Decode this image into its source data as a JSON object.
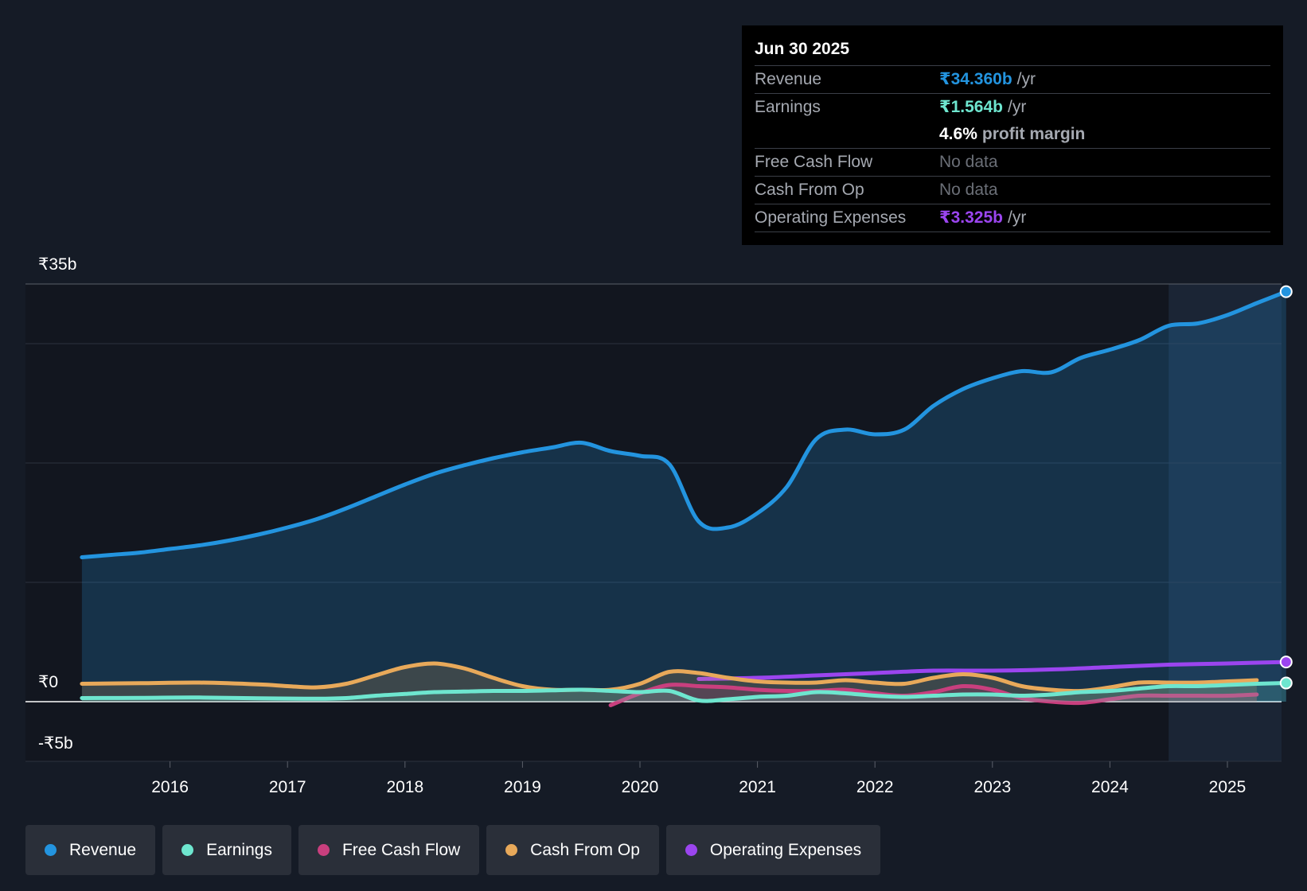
{
  "chart_data": {
    "type": "area",
    "x_domain": [
      2015.0,
      2025.5
    ],
    "ylim": [
      -5,
      35
    ],
    "y_tick_labels": [
      {
        "value": 35,
        "label": "₹35b"
      },
      {
        "value": 0,
        "label": "₹0"
      },
      {
        "value": -5,
        "label": "-₹5b"
      }
    ],
    "gridlines": [
      35,
      30,
      20,
      10,
      0,
      -5
    ],
    "x_ticks": [
      {
        "value": 2016,
        "label": "2016"
      },
      {
        "value": 2017,
        "label": "2017"
      },
      {
        "value": 2018,
        "label": "2018"
      },
      {
        "value": 2019,
        "label": "2019"
      },
      {
        "value": 2020,
        "label": "2020"
      },
      {
        "value": 2021,
        "label": "2021"
      },
      {
        "value": 2022,
        "label": "2022"
      },
      {
        "value": 2023,
        "label": "2023"
      },
      {
        "value": 2024,
        "label": "2024"
      },
      {
        "value": 2025,
        "label": "2025"
      }
    ],
    "forecast_region_start": 2024.5,
    "series": [
      {
        "name": "Revenue",
        "color": "#2394df",
        "fill": true,
        "endpoint": true,
        "width": 5,
        "points": [
          [
            2015.25,
            12.1
          ],
          [
            2015.5,
            12.3
          ],
          [
            2015.75,
            12.5
          ],
          [
            2016.0,
            12.8
          ],
          [
            2016.25,
            13.1
          ],
          [
            2016.5,
            13.5
          ],
          [
            2016.75,
            14.0
          ],
          [
            2017.0,
            14.6
          ],
          [
            2017.25,
            15.3
          ],
          [
            2017.5,
            16.2
          ],
          [
            2017.75,
            17.2
          ],
          [
            2018.0,
            18.2
          ],
          [
            2018.25,
            19.1
          ],
          [
            2018.5,
            19.8
          ],
          [
            2018.75,
            20.4
          ],
          [
            2019.0,
            20.9
          ],
          [
            2019.25,
            21.3
          ],
          [
            2019.5,
            21.7
          ],
          [
            2019.75,
            21.0
          ],
          [
            2020.0,
            20.6
          ],
          [
            2020.25,
            19.9
          ],
          [
            2020.5,
            15.1
          ],
          [
            2020.75,
            14.6
          ],
          [
            2021.0,
            15.8
          ],
          [
            2021.25,
            18.0
          ],
          [
            2021.5,
            22.0
          ],
          [
            2021.75,
            22.8
          ],
          [
            2022.0,
            22.4
          ],
          [
            2022.25,
            22.8
          ],
          [
            2022.5,
            24.8
          ],
          [
            2022.75,
            26.2
          ],
          [
            2023.0,
            27.1
          ],
          [
            2023.25,
            27.7
          ],
          [
            2023.5,
            27.6
          ],
          [
            2023.75,
            28.8
          ],
          [
            2024.0,
            29.5
          ],
          [
            2024.25,
            30.3
          ],
          [
            2024.5,
            31.5
          ],
          [
            2024.75,
            31.7
          ],
          [
            2025.0,
            32.4
          ],
          [
            2025.25,
            33.4
          ],
          [
            2025.5,
            34.36
          ]
        ]
      },
      {
        "name": "Operating Expenses",
        "color": "#9b45ef",
        "fill": false,
        "endpoint": true,
        "width": 5,
        "points": [
          [
            2020.5,
            1.9
          ],
          [
            2021.0,
            2.0
          ],
          [
            2021.5,
            2.2
          ],
          [
            2022.0,
            2.4
          ],
          [
            2022.5,
            2.6
          ],
          [
            2023.0,
            2.6
          ],
          [
            2023.5,
            2.7
          ],
          [
            2024.0,
            2.9
          ],
          [
            2024.5,
            3.1
          ],
          [
            2025.0,
            3.2
          ],
          [
            2025.5,
            3.325
          ]
        ]
      },
      {
        "name": "Cash From Op",
        "color": "#e8a95a",
        "fill": true,
        "endpoint": false,
        "width": 5,
        "points": [
          [
            2015.25,
            1.5
          ],
          [
            2015.75,
            1.55
          ],
          [
            2016.25,
            1.6
          ],
          [
            2016.75,
            1.45
          ],
          [
            2017.0,
            1.3
          ],
          [
            2017.25,
            1.2
          ],
          [
            2017.5,
            1.5
          ],
          [
            2017.75,
            2.2
          ],
          [
            2018.0,
            2.9
          ],
          [
            2018.25,
            3.2
          ],
          [
            2018.5,
            2.8
          ],
          [
            2018.75,
            2.0
          ],
          [
            2019.0,
            1.3
          ],
          [
            2019.25,
            1.0
          ],
          [
            2019.5,
            1.0
          ],
          [
            2019.75,
            1.0
          ],
          [
            2020.0,
            1.5
          ],
          [
            2020.25,
            2.5
          ],
          [
            2020.5,
            2.4
          ],
          [
            2020.75,
            2.0
          ],
          [
            2021.0,
            1.7
          ],
          [
            2021.25,
            1.6
          ],
          [
            2021.5,
            1.6
          ],
          [
            2021.75,
            1.8
          ],
          [
            2022.0,
            1.6
          ],
          [
            2022.25,
            1.5
          ],
          [
            2022.5,
            2.0
          ],
          [
            2022.75,
            2.3
          ],
          [
            2023.0,
            2.0
          ],
          [
            2023.25,
            1.3
          ],
          [
            2023.5,
            1.0
          ],
          [
            2023.75,
            0.9
          ],
          [
            2024.0,
            1.2
          ],
          [
            2024.25,
            1.6
          ],
          [
            2024.5,
            1.6
          ],
          [
            2024.75,
            1.6
          ],
          [
            2025.0,
            1.7
          ],
          [
            2025.25,
            1.8
          ]
        ]
      },
      {
        "name": "Free Cash Flow",
        "color": "#c93f7e",
        "fill": true,
        "endpoint": false,
        "width": 5,
        "points": [
          [
            2019.75,
            -0.3
          ],
          [
            2020.0,
            0.7
          ],
          [
            2020.25,
            1.4
          ],
          [
            2020.5,
            1.3
          ],
          [
            2020.75,
            1.2
          ],
          [
            2021.0,
            1.0
          ],
          [
            2021.25,
            0.9
          ],
          [
            2021.5,
            0.9
          ],
          [
            2021.75,
            1.0
          ],
          [
            2022.0,
            0.7
          ],
          [
            2022.25,
            0.5
          ],
          [
            2022.5,
            0.8
          ],
          [
            2022.75,
            1.3
          ],
          [
            2023.0,
            1.0
          ],
          [
            2023.25,
            0.3
          ],
          [
            2023.5,
            0.0
          ],
          [
            2023.75,
            -0.1
          ],
          [
            2024.0,
            0.2
          ],
          [
            2024.25,
            0.5
          ],
          [
            2024.5,
            0.5
          ],
          [
            2024.75,
            0.5
          ],
          [
            2025.0,
            0.5
          ],
          [
            2025.25,
            0.6
          ]
        ]
      },
      {
        "name": "Earnings",
        "color": "#6ee6cf",
        "fill": true,
        "endpoint": true,
        "width": 5,
        "points": [
          [
            2015.25,
            0.3
          ],
          [
            2015.75,
            0.32
          ],
          [
            2016.25,
            0.35
          ],
          [
            2016.75,
            0.28
          ],
          [
            2017.25,
            0.25
          ],
          [
            2017.5,
            0.3
          ],
          [
            2017.75,
            0.5
          ],
          [
            2018.0,
            0.65
          ],
          [
            2018.25,
            0.8
          ],
          [
            2018.5,
            0.85
          ],
          [
            2018.75,
            0.9
          ],
          [
            2019.0,
            0.9
          ],
          [
            2019.25,
            0.95
          ],
          [
            2019.5,
            1.0
          ],
          [
            2019.75,
            0.9
          ],
          [
            2020.0,
            0.8
          ],
          [
            2020.25,
            0.9
          ],
          [
            2020.5,
            0.1
          ],
          [
            2020.75,
            0.2
          ],
          [
            2021.0,
            0.4
          ],
          [
            2021.25,
            0.5
          ],
          [
            2021.5,
            0.8
          ],
          [
            2021.75,
            0.7
          ],
          [
            2022.0,
            0.5
          ],
          [
            2022.25,
            0.4
          ],
          [
            2022.5,
            0.5
          ],
          [
            2022.75,
            0.6
          ],
          [
            2023.0,
            0.6
          ],
          [
            2023.25,
            0.5
          ],
          [
            2023.5,
            0.6
          ],
          [
            2023.75,
            0.8
          ],
          [
            2024.0,
            0.9
          ],
          [
            2024.25,
            1.1
          ],
          [
            2024.5,
            1.3
          ],
          [
            2024.75,
            1.3
          ],
          [
            2025.0,
            1.4
          ],
          [
            2025.25,
            1.5
          ],
          [
            2025.5,
            1.564
          ]
        ]
      }
    ]
  },
  "tooltip": {
    "date": "Jun 30 2025",
    "rows": {
      "revenue": {
        "label": "Revenue",
        "value": "₹34.360b",
        "unit": "/yr",
        "color": "#2394df"
      },
      "earnings": {
        "label": "Earnings",
        "value": "₹1.564b",
        "unit": "/yr",
        "color": "#6ee6cf"
      },
      "margin": {
        "value": "4.6%",
        "unit": "profit margin",
        "color": "#ffffff"
      },
      "fcf": {
        "label": "Free Cash Flow",
        "value": "No data"
      },
      "cfo": {
        "label": "Cash From Op",
        "value": "No data"
      },
      "opex": {
        "label": "Operating Expenses",
        "value": "₹3.325b",
        "unit": "/yr",
        "color": "#9b45ef"
      }
    }
  },
  "legend": [
    {
      "label": "Revenue",
      "color": "#2394df"
    },
    {
      "label": "Earnings",
      "color": "#6ee6cf"
    },
    {
      "label": "Free Cash Flow",
      "color": "#c93f7e"
    },
    {
      "label": "Cash From Op",
      "color": "#e8a95a"
    },
    {
      "label": "Operating Expenses",
      "color": "#9b45ef"
    }
  ]
}
